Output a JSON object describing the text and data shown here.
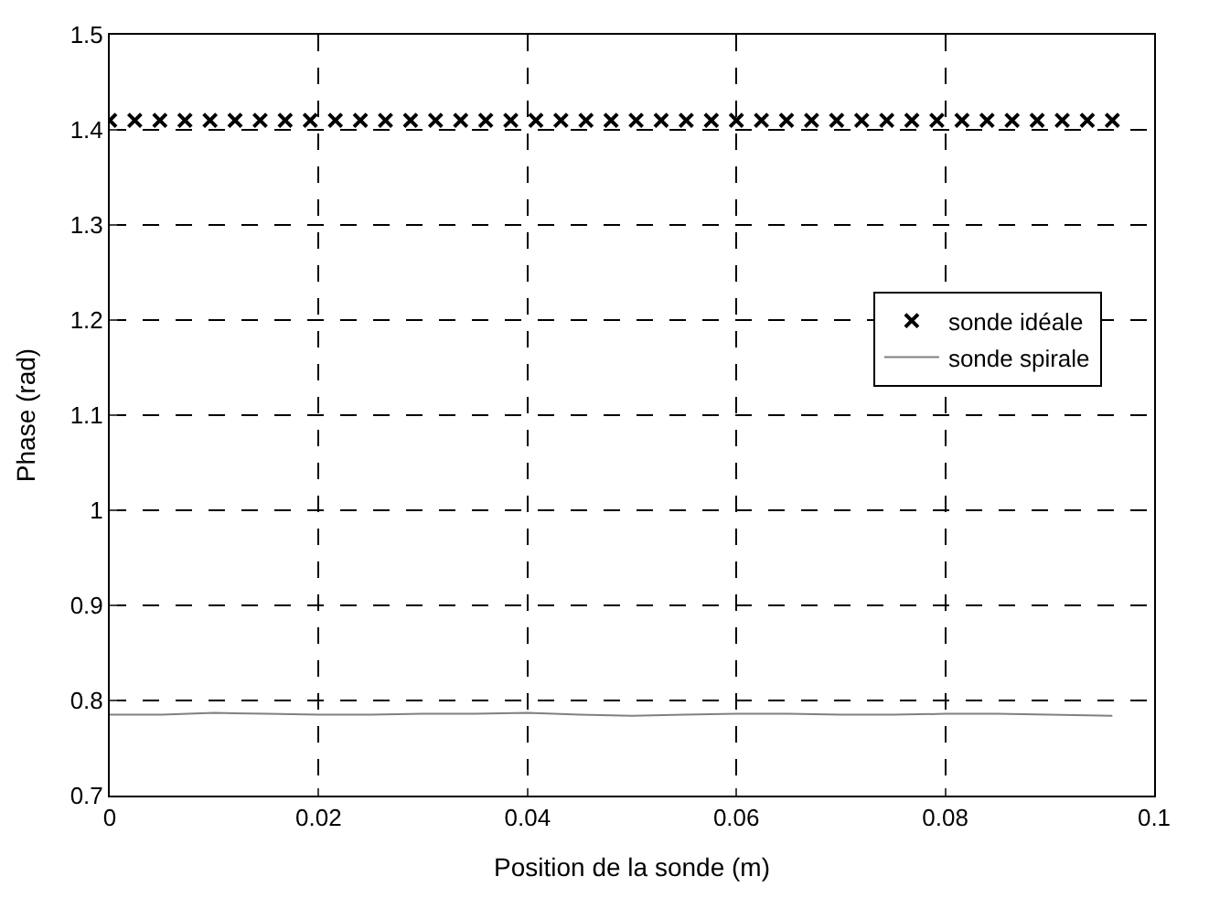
{
  "chart_data": {
    "type": "line",
    "xlabel": "Position de la sonde (m)",
    "ylabel": "Phase (rad)",
    "xlim": [
      0,
      0.1
    ],
    "xticks": [
      0,
      0.02,
      0.04,
      0.06,
      0.08,
      0.1
    ],
    "ylim": [
      0.7,
      1.5
    ],
    "yticks": [
      0.7,
      0.8,
      0.9,
      1,
      1.1,
      1.2,
      1.3,
      1.4,
      1.5
    ],
    "grid": true,
    "legend": "right",
    "series": [
      {
        "name": "sonde idéale",
        "type": "scatter",
        "marker": "cross",
        "color": "#000000",
        "x": [
          0,
          0.0024,
          0.0048,
          0.0072,
          0.0096,
          0.012,
          0.0144,
          0.0168,
          0.0192,
          0.0216,
          0.024,
          0.0264,
          0.0288,
          0.0312,
          0.0336,
          0.036,
          0.0384,
          0.0408,
          0.0432,
          0.0456,
          0.048,
          0.0504,
          0.0528,
          0.0552,
          0.0576,
          0.06,
          0.0624,
          0.0648,
          0.0672,
          0.0696,
          0.072,
          0.0744,
          0.0768,
          0.0792,
          0.0816,
          0.084,
          0.0864,
          0.0888,
          0.0912,
          0.0936,
          0.096
        ],
        "values": [
          1.41,
          1.41,
          1.41,
          1.41,
          1.41,
          1.41,
          1.41,
          1.41,
          1.41,
          1.41,
          1.41,
          1.41,
          1.41,
          1.41,
          1.41,
          1.41,
          1.41,
          1.41,
          1.41,
          1.41,
          1.41,
          1.41,
          1.41,
          1.41,
          1.41,
          1.41,
          1.41,
          1.41,
          1.41,
          1.41,
          1.41,
          1.41,
          1.41,
          1.41,
          1.41,
          1.41,
          1.41,
          1.41,
          1.41,
          1.41,
          1.41
        ]
      },
      {
        "name": "sonde spirale",
        "color": "#808080",
        "x": [
          0,
          0.005,
          0.01,
          0.015,
          0.02,
          0.025,
          0.03,
          0.035,
          0.04,
          0.045,
          0.05,
          0.055,
          0.06,
          0.065,
          0.07,
          0.075,
          0.08,
          0.085,
          0.09,
          0.096
        ],
        "values": [
          0.785,
          0.785,
          0.787,
          0.786,
          0.785,
          0.785,
          0.786,
          0.786,
          0.787,
          0.785,
          0.784,
          0.785,
          0.786,
          0.786,
          0.785,
          0.785,
          0.786,
          0.786,
          0.785,
          0.784
        ]
      }
    ]
  }
}
